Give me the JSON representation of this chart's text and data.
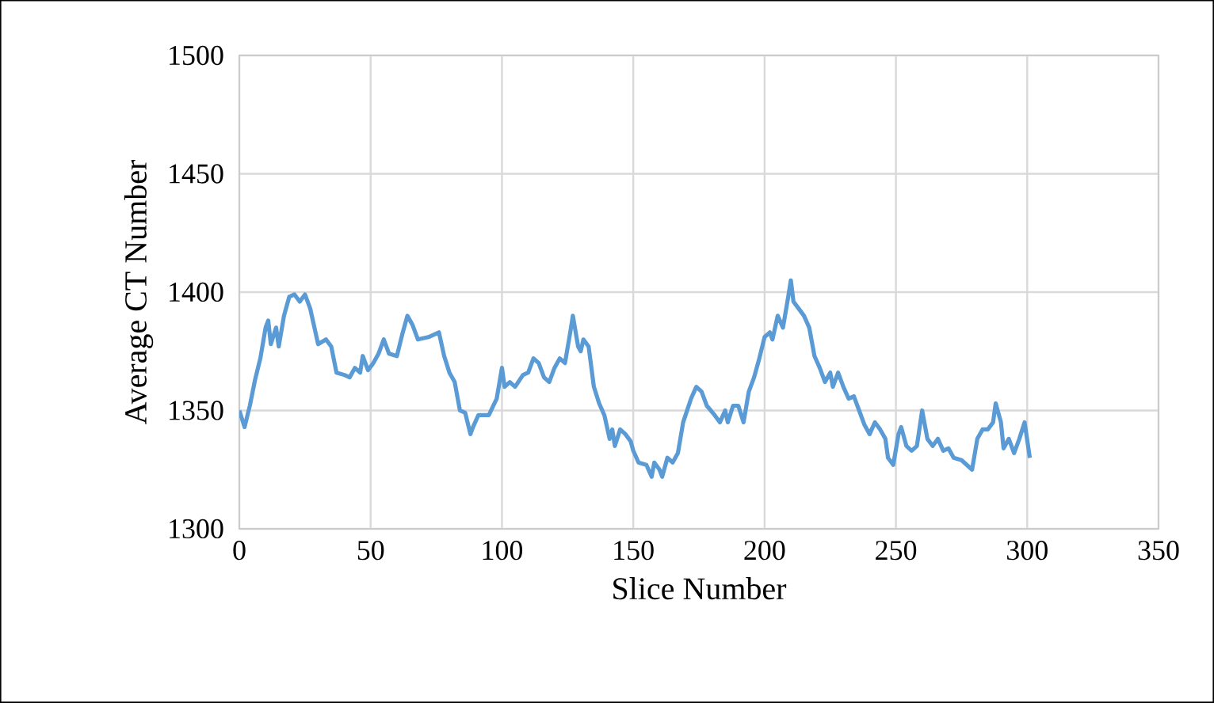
{
  "chart_data": {
    "type": "line",
    "xlabel": "Slice Number",
    "ylabel": "Average CT Number",
    "xlim": [
      0,
      350
    ],
    "ylim": [
      1300,
      1500
    ],
    "xticks": [
      0,
      50,
      100,
      150,
      200,
      250,
      300,
      350
    ],
    "yticks": [
      1300,
      1350,
      1400,
      1450,
      1500
    ],
    "grid": true,
    "series": [
      {
        "color": "#5b9bd5",
        "x": [
          0,
          2,
          4,
          6,
          8,
          10,
          11,
          12,
          14,
          15,
          17,
          19,
          21,
          23,
          25,
          27,
          28,
          30,
          33,
          35,
          37,
          40,
          42,
          44,
          46,
          47,
          49,
          51,
          53,
          55,
          57,
          60,
          62,
          64,
          66,
          68,
          72,
          76,
          78,
          80,
          82,
          84,
          86,
          88,
          89,
          91,
          95,
          98,
          100,
          101,
          103,
          105,
          108,
          110,
          112,
          114,
          116,
          118,
          120,
          122,
          124,
          126,
          127,
          129,
          130,
          131,
          133,
          135,
          137,
          139,
          141,
          142,
          143,
          145,
          147,
          149,
          150,
          152,
          155,
          157,
          158,
          160,
          161,
          163,
          165,
          167,
          169,
          172,
          174,
          176,
          178,
          181,
          183,
          185,
          186,
          188,
          190,
          192,
          194,
          196,
          198,
          200,
          202,
          203,
          205,
          207,
          209,
          210,
          211,
          213,
          215,
          217,
          219,
          221,
          223,
          225,
          226,
          228,
          230,
          232,
          234,
          236,
          238,
          240,
          242,
          244,
          246,
          247,
          249,
          251,
          252,
          254,
          256,
          258,
          260,
          262,
          264,
          266,
          268,
          270,
          272,
          275,
          277,
          279,
          281,
          283,
          285,
          287,
          288,
          290,
          291,
          293,
          295,
          297,
          299,
          301
        ],
        "values": [
          1350,
          1343,
          1352,
          1363,
          1372,
          1385,
          1388,
          1378,
          1385,
          1377,
          1390,
          1398,
          1399,
          1396,
          1399,
          1393,
          1388,
          1378,
          1380,
          1377,
          1366,
          1365,
          1364,
          1368,
          1366,
          1373,
          1367,
          1370,
          1374,
          1380,
          1374,
          1373,
          1382,
          1390,
          1386,
          1380,
          1381,
          1383,
          1373,
          1366,
          1362,
          1350,
          1349,
          1340,
          1343,
          1348,
          1348,
          1355,
          1368,
          1360,
          1362,
          1360,
          1365,
          1366,
          1372,
          1370,
          1364,
          1362,
          1368,
          1372,
          1370,
          1383,
          1390,
          1377,
          1375,
          1380,
          1377,
          1360,
          1353,
          1348,
          1338,
          1342,
          1335,
          1342,
          1340,
          1337,
          1333,
          1328,
          1327,
          1322,
          1328,
          1325,
          1322,
          1330,
          1328,
          1332,
          1345,
          1355,
          1360,
          1358,
          1352,
          1348,
          1345,
          1350,
          1345,
          1352,
          1352,
          1345,
          1358,
          1364,
          1372,
          1381,
          1383,
          1380,
          1390,
          1385,
          1398,
          1405,
          1396,
          1393,
          1390,
          1385,
          1373,
          1368,
          1362,
          1366,
          1360,
          1366,
          1360,
          1355,
          1356,
          1350,
          1344,
          1340,
          1345,
          1342,
          1338,
          1330,
          1327,
          1340,
          1343,
          1335,
          1333,
          1335,
          1350,
          1338,
          1335,
          1338,
          1333,
          1334,
          1330,
          1329,
          1327,
          1325,
          1338,
          1342,
          1342,
          1345,
          1353,
          1345,
          1334,
          1338,
          1332,
          1338,
          1345,
          1330
        ]
      }
    ]
  }
}
